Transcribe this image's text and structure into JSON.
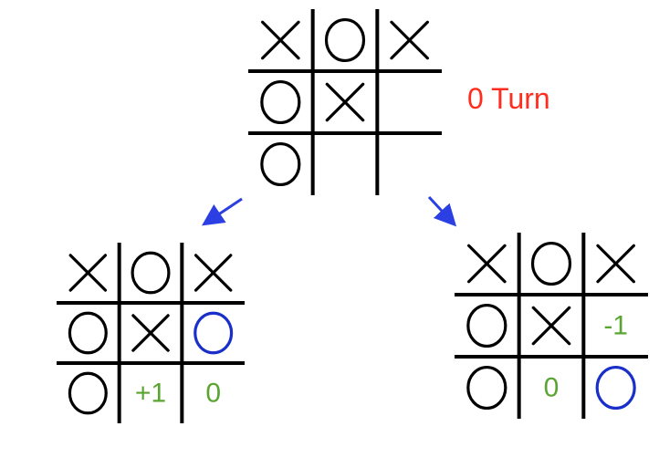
{
  "colors": {
    "grid": "#000000",
    "mark": "#000000",
    "new_move": "#1a2fc9",
    "score": "#5aa532",
    "turn_label": "#ff2d1f",
    "arrow": "#2b3fe3"
  },
  "turn_label": "0 Turn",
  "boards": {
    "root": {
      "cells": [
        [
          "X",
          "O",
          "X"
        ],
        [
          "O",
          "X",
          ""
        ],
        [
          "O",
          "",
          ""
        ]
      ],
      "new_move": null,
      "scores": {}
    },
    "left_child": {
      "cells": [
        [
          "X",
          "O",
          "X"
        ],
        [
          "O",
          "X",
          "O"
        ],
        [
          "O",
          "",
          ""
        ]
      ],
      "new_move": [
        1,
        2
      ],
      "scores": {
        "2,1": "+1",
        "2,2": "0"
      }
    },
    "right_child": {
      "cells": [
        [
          "X",
          "O",
          "X"
        ],
        [
          "O",
          "X",
          ""
        ],
        [
          "O",
          "",
          "O"
        ]
      ],
      "new_move": [
        2,
        2
      ],
      "scores": {
        "1,2": "-1",
        "2,1": "0"
      }
    }
  }
}
